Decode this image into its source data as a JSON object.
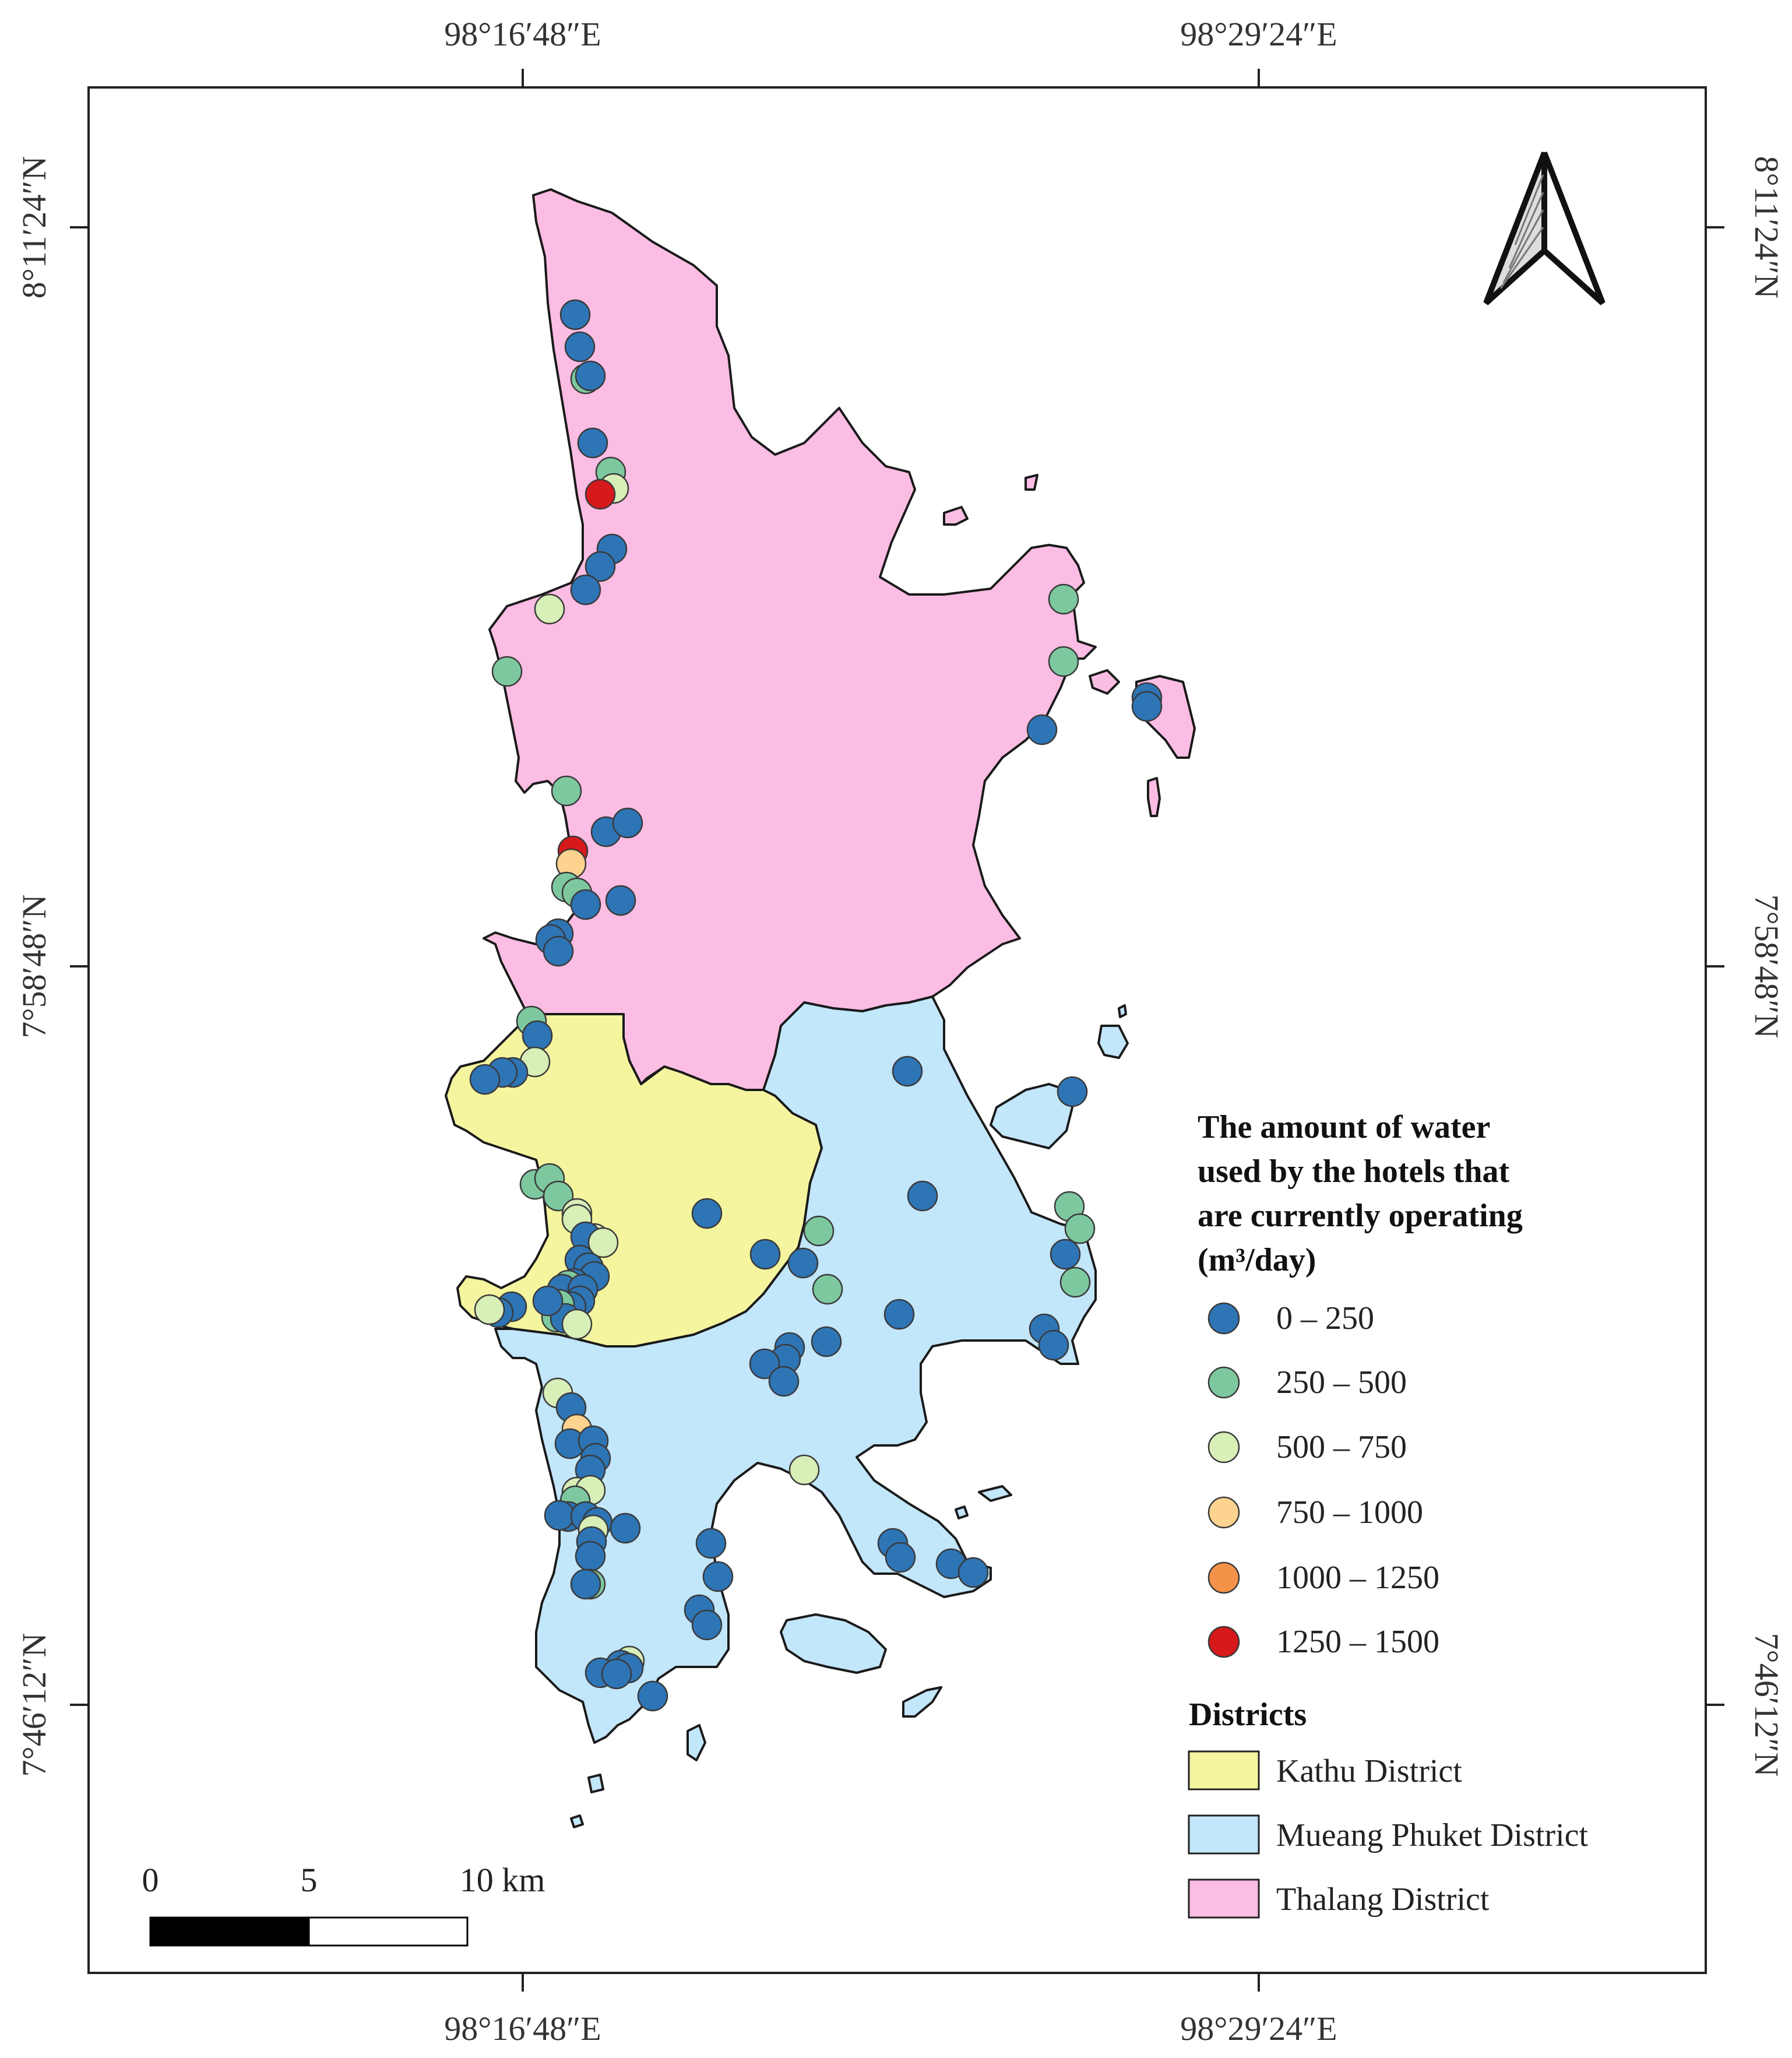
{
  "coords": {
    "top": [
      "98°16′48″E",
      "98°29′24″E"
    ],
    "bottom": [
      "98°16′48″E",
      "98°29′24″E"
    ],
    "left": [
      "8°11′24″N",
      "7°58′48″N",
      "7°46′12″N"
    ],
    "right": [
      "8°11′24″N",
      "7°58′48″N",
      "7°46′12″N"
    ]
  },
  "legend": {
    "water_title": [
      "The amount of water",
      "used by the hotels that",
      "are currently operating",
      "(m³/day)"
    ],
    "classes": [
      {
        "label": "0 – 250",
        "color": "#2e75b6"
      },
      {
        "label": "250 – 500",
        "color": "#7ec8a0"
      },
      {
        "label": "500 – 750",
        "color": "#d8efb8"
      },
      {
        "label": "750 – 1000",
        "color": "#fdd38f"
      },
      {
        "label": "1000 – 1250",
        "color": "#f4924a"
      },
      {
        "label": "1250 – 1500",
        "color": "#d7191c"
      }
    ],
    "districts_title": "Districts",
    "districts": [
      {
        "label": "Kathu District",
        "color": "#f5f5a0"
      },
      {
        "label": "Mueang Phuket District",
        "color": "#c2e6fa"
      },
      {
        "label": "Thalang District",
        "color": "#fbbde3"
      }
    ]
  },
  "scalebar": {
    "labels": [
      "0",
      "5",
      "10 km"
    ]
  },
  "north_arrow": "north-arrow-icon"
}
